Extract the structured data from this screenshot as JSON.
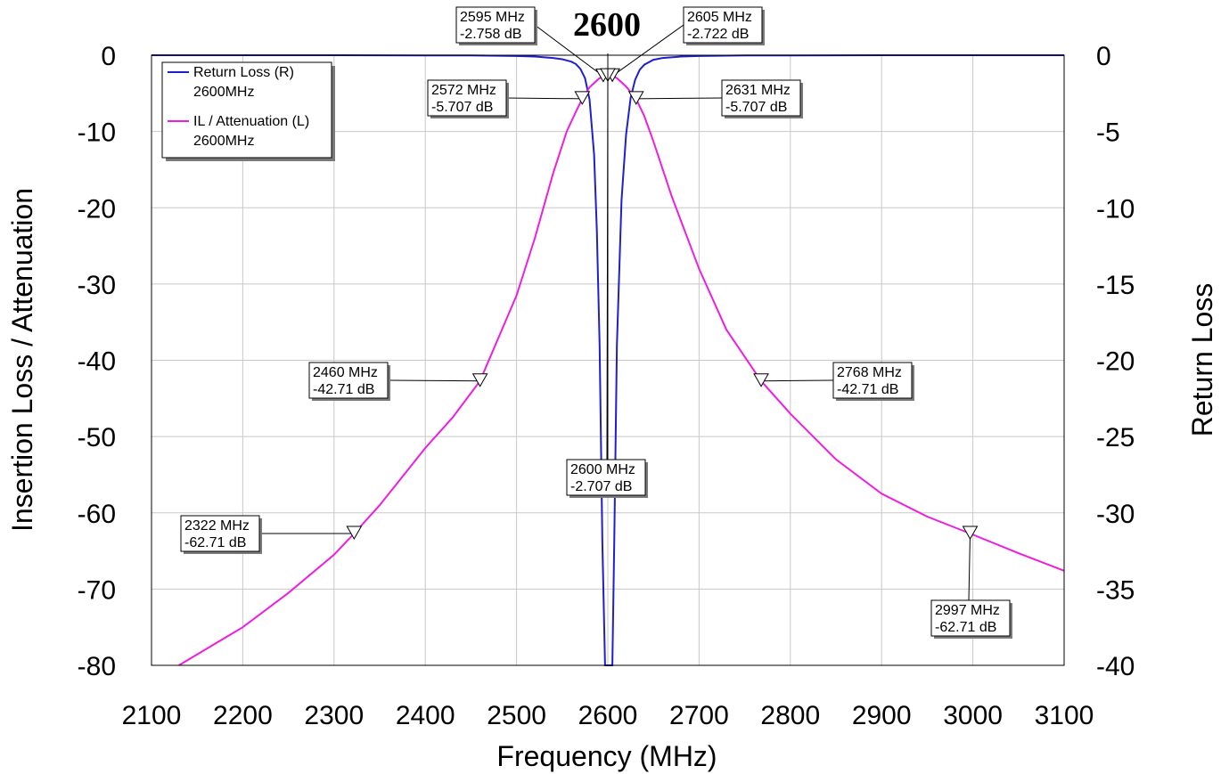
{
  "chart_data": {
    "type": "line",
    "title": "2600",
    "xlabel": "Frequency (MHz)",
    "ylabel_left": "Insertion Loss / Attenuation",
    "ylabel_right": "Return Loss",
    "xlim": [
      2100,
      3100
    ],
    "ylim_left": [
      -80,
      0
    ],
    "ylim_right": [
      -40,
      0
    ],
    "x_ticks": [
      "2100",
      "2200",
      "2300",
      "2400",
      "2500",
      "2600",
      "2700",
      "2800",
      "2900",
      "3000",
      "3100"
    ],
    "y_left_ticks": [
      "0",
      "-10",
      "-20",
      "-30",
      "-40",
      "-50",
      "-60",
      "-70",
      "-80"
    ],
    "y_right_ticks": [
      "0",
      "-5",
      "-10",
      "-15",
      "-20",
      "-25",
      "-30",
      "-35",
      "-40"
    ],
    "grid": true,
    "legend_position": "top-left",
    "series": [
      {
        "name": "Return Loss (R)",
        "subname": "2600MHz",
        "axis": "right",
        "color": "#1f1fd0",
        "x": [
          2100,
          2200,
          2300,
          2400,
          2450,
          2500,
          2520,
          2540,
          2550,
          2560,
          2565,
          2570,
          2575,
          2580,
          2585,
          2588,
          2591,
          2594,
          2597,
          2600,
          2603,
          2605,
          2607,
          2610,
          2615,
          2620,
          2625,
          2630,
          2635,
          2640,
          2650,
          2660,
          2680,
          2700,
          2750,
          2800,
          2900,
          3000,
          3100
        ],
        "y": [
          0,
          0,
          0,
          -0.01,
          -0.02,
          -0.05,
          -0.09,
          -0.18,
          -0.26,
          -0.42,
          -0.58,
          -0.9,
          -1.5,
          -2.9,
          -6.5,
          -11.5,
          -19,
          -32,
          -42,
          -42,
          -42,
          -42,
          -32,
          -19,
          -9.5,
          -5.2,
          -2.8,
          -1.6,
          -0.95,
          -0.62,
          -0.3,
          -0.18,
          -0.09,
          -0.05,
          -0.02,
          -0.01,
          0,
          0,
          0
        ]
      },
      {
        "name": "IL / Attenuation (L)",
        "subname": "2600MHz",
        "axis": "left",
        "color": "#ee1ee0",
        "x": [
          2130,
          2200,
          2250,
          2300,
          2322,
          2350,
          2400,
          2430,
          2460,
          2500,
          2520,
          2540,
          2555,
          2565,
          2572,
          2580,
          2590,
          2595,
          2600,
          2605,
          2610,
          2620,
          2631,
          2640,
          2650,
          2670,
          2700,
          2730,
          2768,
          2800,
          2850,
          2900,
          2950,
          2997,
          3050,
          3100
        ],
        "y": [
          -80,
          -75,
          -70.5,
          -65.5,
          -62.71,
          -59,
          -51.5,
          -47.5,
          -42.71,
          -31.5,
          -24,
          -15.5,
          -10,
          -7.4,
          -5.707,
          -4.2,
          -3.1,
          -2.758,
          -2.707,
          -2.722,
          -3,
          -4.1,
          -5.707,
          -8,
          -11.3,
          -18.5,
          -28,
          -36,
          -42.71,
          -47,
          -53,
          -57.5,
          -60.5,
          -62.71,
          -65.3,
          -67.6
        ]
      }
    ],
    "markers": [
      {
        "freq": 2595,
        "value": -2.758,
        "axis": "left",
        "label1": "2595 MHz",
        "label2": "-2.758 dB"
      },
      {
        "freq": 2605,
        "value": -2.722,
        "axis": "left",
        "label1": "2605 MHz",
        "label2": "-2.722 dB"
      },
      {
        "freq": 2572,
        "value": -5.707,
        "axis": "left",
        "label1": "2572 MHz",
        "label2": "-5.707 dB"
      },
      {
        "freq": 2631,
        "value": -5.707,
        "axis": "left",
        "label1": "2631 MHz",
        "label2": "-5.707 dB"
      },
      {
        "freq": 2460,
        "value": -42.71,
        "axis": "left",
        "label1": "2460 MHz",
        "label2": "-42.71 dB"
      },
      {
        "freq": 2768,
        "value": -42.71,
        "axis": "left",
        "label1": "2768 MHz",
        "label2": "-42.71 dB"
      },
      {
        "freq": 2600,
        "value": -2.707,
        "axis": "left",
        "label1": "2600 MHz",
        "label2": "-2.707 dB"
      },
      {
        "freq": 2322,
        "value": -62.71,
        "axis": "left",
        "label1": "2322 MHz",
        "label2": "-62.71 dB"
      },
      {
        "freq": 2997,
        "value": -62.71,
        "axis": "left",
        "label1": "2997 MHz",
        "label2": "-62.71 dB"
      }
    ]
  }
}
